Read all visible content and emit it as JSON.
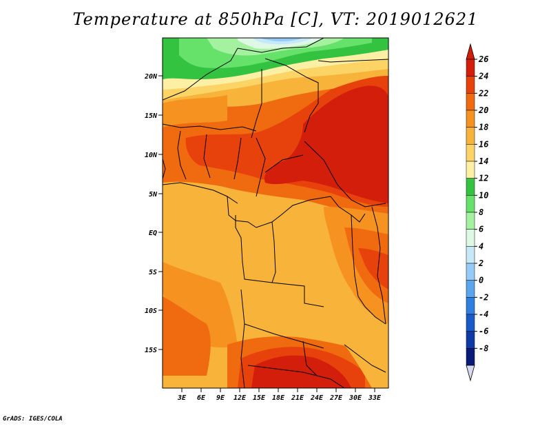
{
  "title": "Temperature at 850hPa [C], VT: 2019012621",
  "footer": "GrADS: IGES/COLA",
  "axes": {
    "lat_ticks": [
      "20N",
      "15N",
      "10N",
      "5N",
      "EQ",
      "5S",
      "10S",
      "15S"
    ],
    "lon_ticks": [
      "3E",
      "6E",
      "9E",
      "12E",
      "15E",
      "18E",
      "21E",
      "24E",
      "27E",
      "30E",
      "33E"
    ]
  },
  "colorbar": {
    "labels": [
      "26",
      "24",
      "22",
      "20",
      "18",
      "16",
      "14",
      "12",
      "10",
      "8",
      "6",
      "4",
      "2",
      "0",
      "-2",
      "-4",
      "-6",
      "-8"
    ],
    "colors": [
      "#d21e0a",
      "#e8420c",
      "#f06a10",
      "#f59220",
      "#f8b33a",
      "#fcd465",
      "#fdf0a4",
      "#33c340",
      "#66e26a",
      "#a4f1a0",
      "#dff8e6",
      "#c6e8f8",
      "#95cbf5",
      "#5aa6ee",
      "#2f7fe0",
      "#1a5ac8",
      "#0e3aa8",
      "#0a1a78"
    ]
  }
}
